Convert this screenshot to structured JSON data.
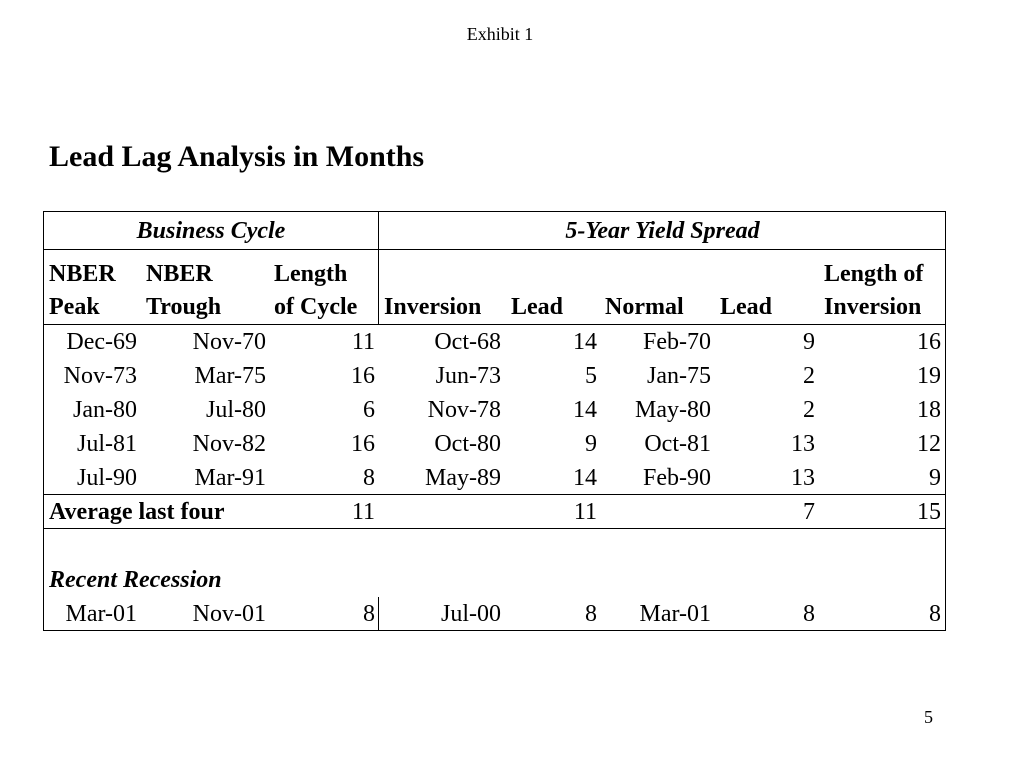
{
  "header": {
    "exhibit_label": "Exhibit 1"
  },
  "title": "Lead Lag Analysis in Months",
  "table": {
    "group_headers": [
      "Business Cycle",
      "5-Year Yield Spread"
    ],
    "columns": [
      {
        "line1": "NBER",
        "line2": "Peak"
      },
      {
        "line1": "NBER",
        "line2": "Trough"
      },
      {
        "line1": "Length",
        "line2": "of Cycle"
      },
      {
        "line1": "",
        "line2": "Inversion"
      },
      {
        "line1": "",
        "line2": "Lead"
      },
      {
        "line1": "",
        "line2": "Normal"
      },
      {
        "line1": "",
        "line2": "Lead"
      },
      {
        "line1": "Length of",
        "line2": "Inversion"
      }
    ],
    "rows": [
      [
        "Dec-69",
        "Nov-70",
        "11",
        "Oct-68",
        "14",
        "Feb-70",
        "9",
        "16"
      ],
      [
        "Nov-73",
        "Mar-75",
        "16",
        "Jun-73",
        "5",
        "Jan-75",
        "2",
        "19"
      ],
      [
        "Jan-80",
        "Jul-80",
        "6",
        "Nov-78",
        "14",
        "May-80",
        "2",
        "18"
      ],
      [
        "Jul-81",
        "Nov-82",
        "16",
        "Oct-80",
        "9",
        "Oct-81",
        "13",
        "12"
      ],
      [
        "Jul-90",
        "Mar-91",
        "8",
        "May-89",
        "14",
        "Feb-90",
        "13",
        "9"
      ]
    ],
    "average": {
      "label": "Average last four",
      "length_of_cycle": "11",
      "inversion_lead": "11",
      "normal_lead": "7",
      "length_of_inversion": "15"
    },
    "recent": {
      "label": "Recent Recession",
      "row": [
        "Mar-01",
        "Nov-01",
        "8",
        "Jul-00",
        "8",
        "Mar-01",
        "8",
        "8"
      ]
    }
  },
  "footer": {
    "page_number": "5"
  }
}
